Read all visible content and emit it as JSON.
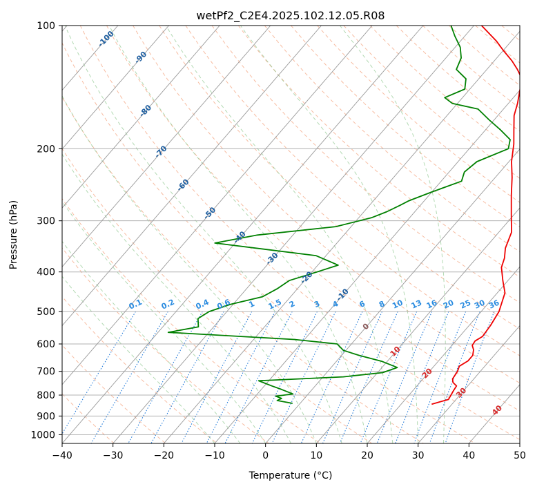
{
  "chart_data": {
    "type": "line",
    "title": "wetPf2_C2E4.2025.102.12.05.R08",
    "xlabel": "Temperature (°C)",
    "ylabel": "Pressure (hPa)",
    "xlim": [
      -40,
      50
    ],
    "ylim": [
      1050,
      100
    ],
    "y_scale": "log",
    "x_ticks": [
      -40,
      -30,
      -20,
      -10,
      0,
      10,
      20,
      30,
      40,
      50
    ],
    "y_ticks": [
      100,
      200,
      300,
      400,
      500,
      600,
      700,
      800,
      900,
      1000
    ],
    "grid": true,
    "skew": true,
    "legend": "none",
    "series": [
      {
        "color": "#ee0000",
        "points": [
          [
            26,
            842
          ],
          [
            28.5,
            820
          ],
          [
            28,
            780
          ],
          [
            27.8,
            760
          ],
          [
            26.5,
            745
          ],
          [
            25.8,
            730
          ],
          [
            25.5,
            700
          ],
          [
            25,
            680
          ],
          [
            25.8,
            660
          ],
          [
            25.8,
            640
          ],
          [
            25,
            620
          ],
          [
            24,
            605
          ],
          [
            23.8,
            590
          ],
          [
            24.5,
            575
          ],
          [
            24.2,
            540
          ],
          [
            23.5,
            500
          ],
          [
            21.5,
            450
          ],
          [
            19,
            420
          ],
          [
            16.5,
            390
          ],
          [
            15.5,
            370
          ],
          [
            14,
            350
          ],
          [
            12.5,
            320
          ],
          [
            9.5,
            290
          ],
          [
            6.2,
            260
          ],
          [
            3.3,
            235
          ],
          [
            0.5,
            215
          ],
          [
            -2,
            195
          ],
          [
            -4.4,
            180
          ],
          [
            -6.8,
            166
          ],
          [
            -8.2,
            155
          ],
          [
            -9.8,
            145
          ],
          [
            -11.5,
            135
          ],
          [
            -14,
            128
          ],
          [
            -16.5,
            122
          ],
          [
            -20,
            115
          ],
          [
            -23,
            109
          ],
          [
            -26,
            104
          ],
          [
            -28.5,
            100
          ]
        ]
      },
      {
        "color": "#008000",
        "points": [
          [
            -1.5,
            838
          ],
          [
            -5,
            825
          ],
          [
            -4.5,
            815
          ],
          [
            -6,
            805
          ],
          [
            -3,
            795
          ],
          [
            -6,
            775
          ],
          [
            -8.5,
            760
          ],
          [
            -12,
            738
          ],
          [
            4,
            722
          ],
          [
            11,
            705
          ],
          [
            13,
            685
          ],
          [
            9,
            662
          ],
          [
            3.5,
            640
          ],
          [
            -0.5,
            622
          ],
          [
            -2.8,
            600
          ],
          [
            -12,
            585
          ],
          [
            -38,
            562
          ],
          [
            -33,
            545
          ],
          [
            -34.5,
            520
          ],
          [
            -33.5,
            500
          ],
          [
            -30.5,
            480
          ],
          [
            -25.5,
            460
          ],
          [
            -24,
            440
          ],
          [
            -23,
            420
          ],
          [
            -19,
            400
          ],
          [
            -16,
            385
          ],
          [
            -22,
            365
          ],
          [
            -44,
            340
          ],
          [
            -37,
            325
          ],
          [
            -23,
            310
          ],
          [
            -17.5,
            295
          ],
          [
            -15.5,
            285
          ],
          [
            -14,
            275
          ],
          [
            -13,
            268
          ],
          [
            -10,
            255
          ],
          [
            -6,
            240
          ],
          [
            -7,
            228
          ],
          [
            -6.3,
            215
          ],
          [
            -2.3,
            200
          ],
          [
            -3.5,
            190
          ],
          [
            -7,
            180
          ],
          [
            -11,
            170
          ],
          [
            -15,
            160
          ],
          [
            -21,
            155
          ],
          [
            -23.5,
            150
          ],
          [
            -21,
            143
          ],
          [
            -22.5,
            135
          ],
          [
            -26,
            128
          ],
          [
            -27,
            120
          ],
          [
            -29,
            113
          ],
          [
            -32,
            106
          ],
          [
            -34.5,
            100
          ]
        ]
      }
    ],
    "isotherm_labels": [
      "-100",
      "-90",
      "-80",
      "-70",
      "-60",
      "-50",
      "-40",
      "-30",
      "-20",
      "-10",
      "0",
      "10",
      "20",
      "30",
      "40"
    ],
    "mixing_ratio_labels": [
      "0.1",
      "0.2",
      "0.4",
      "0.6",
      "1",
      "1.5",
      "2",
      "3",
      "4",
      "6",
      "8",
      "10",
      "13",
      "16",
      "20",
      "25",
      "30",
      "36"
    ]
  }
}
